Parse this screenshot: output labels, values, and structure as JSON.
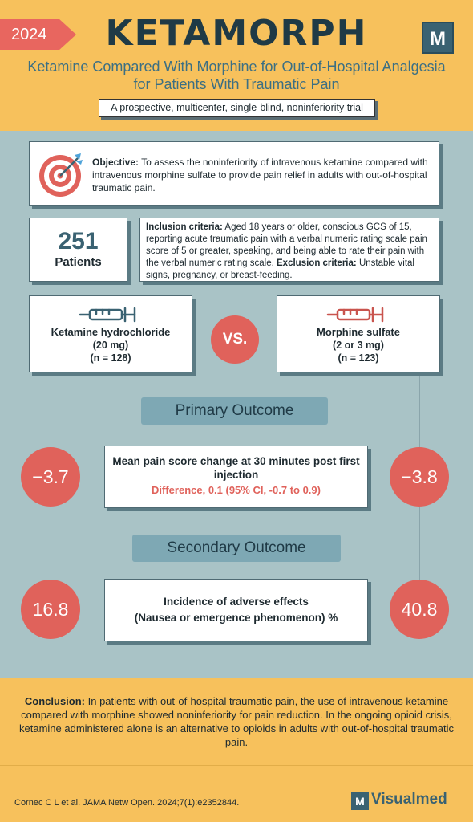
{
  "header": {
    "year": "2024",
    "title": "KETAMORPH",
    "brand_letter": "M",
    "subtitle_line1": "Ketamine Compared With Morphine for Out-of-Hospital Analgesia",
    "subtitle_line2": "for Patients With Traumatic Pain",
    "trial_type": "A prospective, multicenter, single-blind, noninferiority trial"
  },
  "objective": {
    "label": "Objective:",
    "text": "To assess the noninferiority of intravenous ketamine compared with intravenous morphine sulfate to provide pain relief in adults with out-of-hospital traumatic pain.",
    "icon": "target-icon"
  },
  "patients": {
    "count": "251",
    "label": "Patients"
  },
  "criteria": {
    "inclusion_label": "Inclusion criteria:",
    "inclusion_text": "Aged 18 years or older, conscious GCS of 15, reporting acute traumatic pain with a verbal numeric rating scale pain score of 5 or greater, speaking, and being able to rate their pain with the verbal numeric rating scale.",
    "exclusion_label": "Exclusion criteria:",
    "exclusion_text": "Unstable vital signs, pregnancy, or breast-feeding."
  },
  "arms": {
    "left": {
      "name": "Ketamine hydrochloride",
      "dose": "(20 mg)",
      "n": "(n = 128)",
      "icon": "syringe-icon",
      "color": "#3a6272"
    },
    "vs": "VS.",
    "right": {
      "name": "Morphine sulfate",
      "dose": "(2 or 3 mg)",
      "n": "(n = 123)",
      "icon": "syringe-icon",
      "color": "#c9544e"
    }
  },
  "primary": {
    "label": "Primary Outcome",
    "title": "Mean pain score change at 30 minutes post first injection",
    "difference": "Difference, 0.1 (95% CI, -0.7 to 0.9)",
    "ketamine_value": "−3.7",
    "morphine_value": "−3.8"
  },
  "secondary": {
    "label": "Secondary Outcome",
    "title_line1": "Incidence of adverse effects",
    "title_line2": "(Nausea or emergence phenomenon) %",
    "ketamine_value": "16.8",
    "morphine_value": "40.8"
  },
  "conclusion": {
    "label": "Conclusion:",
    "text": "In patients with out-of-hospital traumatic pain, the use of intravenous ketamine compared with morphine showed noninferiority for pain reduction. In the ongoing opioid crisis, ketamine administered alone is an alternative to opioids in adults with out-of-hospital traumatic pain."
  },
  "footer": {
    "citation": "Cornec C L et al. JAMA Netw Open. 2024;7(1):e2352844.",
    "logo_letter": "M",
    "brand_name": "Visualmed"
  },
  "colors": {
    "accent": "#e0625b",
    "header": "#f7c15c",
    "background": "#a9c3c6",
    "primary_dark": "#3a6272"
  }
}
